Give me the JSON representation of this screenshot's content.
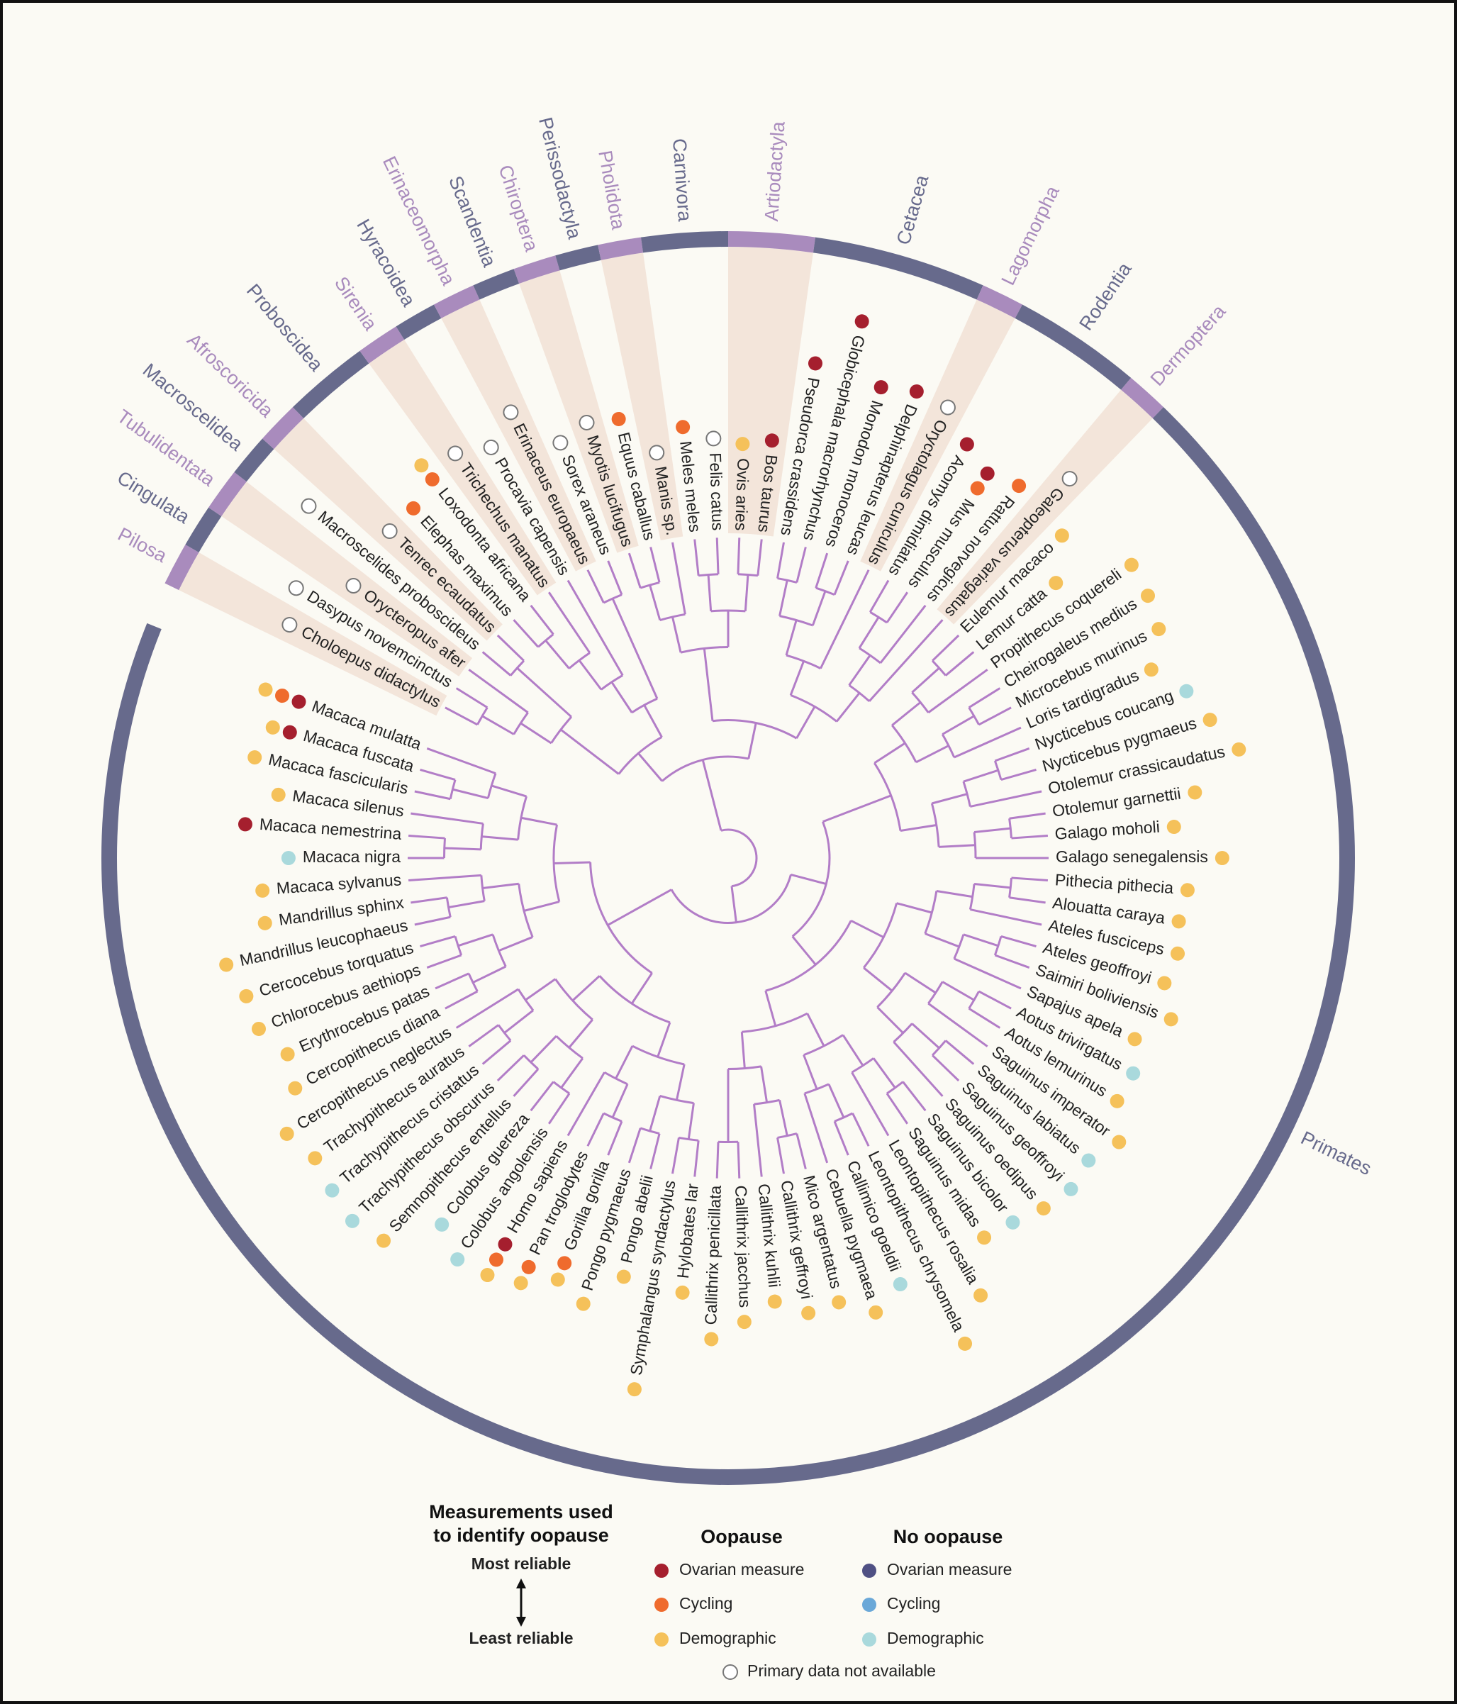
{
  "orders": [
    {
      "name": "Pilosa",
      "color": "#a98bbd",
      "shaded": true,
      "species": [
        {
          "name": "Choloepus didactylus",
          "dots": [
            "#ffffff"
          ]
        }
      ]
    },
    {
      "name": "Cingulata",
      "color": "#676a8c",
      "shaded": false,
      "species": [
        {
          "name": "Dasypus novemcinctus",
          "dots": [
            "#ffffff"
          ]
        }
      ]
    },
    {
      "name": "Tubulidentata",
      "color": "#a98bbd",
      "shaded": true,
      "species": [
        {
          "name": "Orycteropus afer",
          "dots": [
            "#ffffff"
          ]
        }
      ]
    },
    {
      "name": "Macroscelidea",
      "color": "#676a8c",
      "shaded": false,
      "species": [
        {
          "name": "Macroscelides proboscideus",
          "dots": [
            "#ffffff"
          ]
        }
      ]
    },
    {
      "name": "Afroscoricida",
      "color": "#a98bbd",
      "shaded": true,
      "species": [
        {
          "name": "Tenrec ecaudatus",
          "dots": [
            "#ffffff"
          ]
        }
      ]
    },
    {
      "name": "Proboscidea",
      "color": "#676a8c",
      "shaded": false,
      "species": [
        {
          "name": "Elephas maximus",
          "dots": [
            "#ef6b2d"
          ]
        },
        {
          "name": "Loxodonta africana",
          "dots": [
            "#ef6b2d",
            "#f5c15a"
          ]
        }
      ]
    },
    {
      "name": "Sirenia",
      "color": "#a98bbd",
      "shaded": true,
      "species": [
        {
          "name": "Trichechus manatus",
          "dots": [
            "#ffffff"
          ]
        }
      ]
    },
    {
      "name": "Hyracoidea",
      "color": "#676a8c",
      "shaded": false,
      "species": [
        {
          "name": "Procavia capensis",
          "dots": [
            "#ffffff"
          ]
        }
      ]
    },
    {
      "name": "Erinaceomorpha",
      "color": "#a98bbd",
      "shaded": true,
      "species": [
        {
          "name": "Erinaceus europaeus",
          "dots": [
            "#ffffff"
          ]
        }
      ]
    },
    {
      "name": "Scandentia",
      "color": "#676a8c",
      "shaded": false,
      "species": [
        {
          "name": "Sorex araneus",
          "dots": [
            "#ffffff"
          ]
        }
      ]
    },
    {
      "name": "Chiroptera",
      "color": "#a98bbd",
      "shaded": true,
      "species": [
        {
          "name": "Myotis lucifugus",
          "dots": [
            "#ffffff"
          ]
        }
      ]
    },
    {
      "name": "Perissodactyla",
      "color": "#676a8c",
      "shaded": false,
      "species": [
        {
          "name": "Equus caballus",
          "dots": [
            "#ef6b2d"
          ]
        }
      ]
    },
    {
      "name": "Pholidota",
      "color": "#a98bbd",
      "shaded": true,
      "species": [
        {
          "name": "Manis sp.",
          "dots": [
            "#ffffff"
          ]
        }
      ]
    },
    {
      "name": "Carnivora",
      "color": "#676a8c",
      "shaded": false,
      "species": [
        {
          "name": "Meles meles",
          "dots": [
            "#ef6b2d"
          ]
        },
        {
          "name": "Felis catus",
          "dots": [
            "#ffffff"
          ]
        }
      ]
    },
    {
      "name": "Artiodactyla",
      "color": "#a98bbd",
      "shaded": true,
      "species": [
        {
          "name": "Ovis aries",
          "dots": [
            "#f5c15a"
          ]
        },
        {
          "name": "Bos taurus",
          "dots": [
            "#a51f2e"
          ]
        }
      ]
    },
    {
      "name": "Cetacea",
      "color": "#676a8c",
      "shaded": false,
      "species": [
        {
          "name": "Pseudorca crassidens",
          "dots": [
            "#a51f2e"
          ]
        },
        {
          "name": "Globicephala macrorhynchus",
          "dots": [
            "#a51f2e"
          ]
        },
        {
          "name": "Monodon monoceros",
          "dots": [
            "#a51f2e"
          ]
        },
        {
          "name": "Delphinapterus leucas",
          "dots": [
            "#a51f2e"
          ]
        }
      ]
    },
    {
      "name": "Lagomorpha",
      "color": "#a98bbd",
      "shaded": true,
      "species": [
        {
          "name": "Oryctolagus cuniculus",
          "dots": [
            "#ffffff"
          ]
        }
      ]
    },
    {
      "name": "Rodentia",
      "color": "#676a8c",
      "shaded": false,
      "species": [
        {
          "name": "Acomys dimidiatus",
          "dots": [
            "#a51f2e"
          ]
        },
        {
          "name": "Mus musculus",
          "dots": [
            "#ef6b2d",
            "#a51f2e"
          ]
        },
        {
          "name": "Rattus norvegicus",
          "dots": [
            "#ef6b2d"
          ]
        }
      ]
    },
    {
      "name": "Dermoptera",
      "color": "#a98bbd",
      "shaded": true,
      "species": [
        {
          "name": "Galeopterus variegatus",
          "dots": [
            "#ffffff"
          ]
        }
      ]
    },
    {
      "name": "Primates",
      "color": "#676a8c",
      "shaded": false,
      "species": [
        {
          "name": "Eulemur macaco",
          "dots": [
            "#f5c15a"
          ]
        },
        {
          "name": "Lemur catta",
          "dots": [
            "#f5c15a"
          ]
        },
        {
          "name": "Propithecus coquereli",
          "dots": [
            "#f5c15a"
          ]
        },
        {
          "name": "Cheirogaleus medius",
          "dots": [
            "#f5c15a"
          ]
        },
        {
          "name": "Microcebus murinus",
          "dots": [
            "#f5c15a"
          ]
        },
        {
          "name": "Loris tardigradus",
          "dots": [
            "#f5c15a"
          ]
        },
        {
          "name": "Nycticebus coucang",
          "dots": [
            "#a9d9dc"
          ]
        },
        {
          "name": "Nycticebus pygmaeus",
          "dots": [
            "#f5c15a"
          ]
        },
        {
          "name": "Otolemur crassicaudatus",
          "dots": [
            "#f5c15a"
          ]
        },
        {
          "name": "Otolemur garnettii",
          "dots": [
            "#f5c15a"
          ]
        },
        {
          "name": "Galago moholi",
          "dots": [
            "#f5c15a"
          ]
        },
        {
          "name": "Galago senegalensis",
          "dots": [
            "#f5c15a"
          ]
        },
        {
          "name": "Pithecia pithecia",
          "dots": [
            "#f5c15a"
          ]
        },
        {
          "name": "Alouatta caraya",
          "dots": [
            "#f5c15a"
          ]
        },
        {
          "name": "Ateles fusciceps",
          "dots": [
            "#f5c15a"
          ]
        },
        {
          "name": "Ateles geoffroyi",
          "dots": [
            "#f5c15a"
          ]
        },
        {
          "name": "Saimiri boliviensis",
          "dots": [
            "#f5c15a"
          ]
        },
        {
          "name": "Sapajus apela",
          "dots": [
            "#f5c15a"
          ]
        },
        {
          "name": "Aotus trivirgatus",
          "dots": [
            "#a9d9dc"
          ]
        },
        {
          "name": "Aotus lemurinus",
          "dots": [
            "#f5c15a"
          ]
        },
        {
          "name": "Saguinus imperator",
          "dots": [
            "#f5c15a"
          ]
        },
        {
          "name": "Saguinus labiatus",
          "dots": [
            "#a9d9dc"
          ]
        },
        {
          "name": "Saguinus geoffroyi",
          "dots": [
            "#a9d9dc"
          ]
        },
        {
          "name": "Saguinus oedipus",
          "dots": [
            "#f5c15a"
          ]
        },
        {
          "name": "Saguinus bicolor",
          "dots": [
            "#a9d9dc"
          ]
        },
        {
          "name": "Saguinus midas",
          "dots": [
            "#f5c15a"
          ]
        },
        {
          "name": "Leontopithecus rosalia",
          "dots": [
            "#f5c15a"
          ]
        },
        {
          "name": "Leontopithecus chrysomela",
          "dots": [
            "#f5c15a"
          ]
        },
        {
          "name": "Callimico goeldii",
          "dots": [
            "#a9d9dc"
          ]
        },
        {
          "name": "Cebuella pygmaea",
          "dots": [
            "#f5c15a"
          ]
        },
        {
          "name": "Mico argentatus",
          "dots": [
            "#f5c15a"
          ]
        },
        {
          "name": "Callithrix geffroyi",
          "dots": [
            "#f5c15a"
          ]
        },
        {
          "name": "Callithrix kuhlii",
          "dots": [
            "#f5c15a"
          ]
        },
        {
          "name": "Callithrix jacchus",
          "dots": [
            "#f5c15a"
          ]
        },
        {
          "name": "Callithrix penicillata",
          "dots": [
            "#f5c15a"
          ]
        },
        {
          "name": "Hylobates lar",
          "dots": [
            "#f5c15a"
          ]
        },
        {
          "name": "Symphalangus syndactylus",
          "dots": [
            "#f5c15a"
          ]
        },
        {
          "name": "Pongo abelii",
          "dots": [
            "#f5c15a"
          ]
        },
        {
          "name": "Pongo pygmaeus",
          "dots": [
            "#f5c15a"
          ]
        },
        {
          "name": "Gorilla gorilla",
          "dots": [
            "#ef6b2d",
            "#f5c15a"
          ]
        },
        {
          "name": "Pan troglodytes",
          "dots": [
            "#ef6b2d",
            "#f5c15a"
          ]
        },
        {
          "name": "Homo sapiens",
          "dots": [
            "#a51f2e",
            "#ef6b2d",
            "#f5c15a"
          ]
        },
        {
          "name": "Colobus angolensis",
          "dots": [
            "#a9d9dc"
          ]
        },
        {
          "name": "Colobus guereza",
          "dots": [
            "#a9d9dc"
          ]
        },
        {
          "name": "Semnopithecus entellus",
          "dots": [
            "#f5c15a"
          ]
        },
        {
          "name": "Trachypithecus obscurus",
          "dots": [
            "#a9d9dc"
          ]
        },
        {
          "name": "Trachypithecus cristatus",
          "dots": [
            "#a9d9dc"
          ]
        },
        {
          "name": "Trachypithecus auratus",
          "dots": [
            "#f5c15a"
          ]
        },
        {
          "name": "Cercopithecus neglectus",
          "dots": [
            "#f5c15a"
          ]
        },
        {
          "name": "Cercopithecus diana",
          "dots": [
            "#f5c15a"
          ]
        },
        {
          "name": "Erythrocebus patas",
          "dots": [
            "#f5c15a"
          ]
        },
        {
          "name": "Chlorocebus aethiops",
          "dots": [
            "#f5c15a"
          ]
        },
        {
          "name": "Cercocebus torquatus",
          "dots": [
            "#f5c15a"
          ]
        },
        {
          "name": "Mandrillus leucophaeus",
          "dots": [
            "#f5c15a"
          ]
        },
        {
          "name": "Mandrillus sphinx",
          "dots": [
            "#f5c15a"
          ]
        },
        {
          "name": "Macaca sylvanus",
          "dots": [
            "#f5c15a"
          ]
        },
        {
          "name": "Macaca nigra",
          "dots": [
            "#a9d9dc"
          ]
        },
        {
          "name": "Macaca nemestrina",
          "dots": [
            "#a51f2e"
          ]
        },
        {
          "name": "Macaca silenus",
          "dots": [
            "#f5c15a"
          ]
        },
        {
          "name": "Macaca fascicularis",
          "dots": [
            "#f5c15a"
          ]
        },
        {
          "name": "Macaca fuscata",
          "dots": [
            "#a51f2e",
            "#f5c15a"
          ]
        },
        {
          "name": "Macaca mulatta",
          "dots": [
            "#a51f2e",
            "#ef6b2d",
            "#f5c15a"
          ]
        }
      ]
    }
  ],
  "legend": {
    "reliability": {
      "title": [
        "Measurements used",
        "to identify oopause"
      ],
      "most": "Most reliable",
      "least": "Least reliable"
    },
    "oopause": {
      "title": "Oopause",
      "items": [
        {
          "label": "Ovarian measure",
          "color": "#a51f2e"
        },
        {
          "label": "Cycling",
          "color": "#ef6b2d"
        },
        {
          "label": "Demographic",
          "color": "#f5c15a"
        }
      ]
    },
    "no_oopause": {
      "title": "No oopause",
      "items": [
        {
          "label": "Ovarian measure",
          "color": "#4f5083"
        },
        {
          "label": "Cycling",
          "color": "#6aa8d8"
        },
        {
          "label": "Demographic",
          "color": "#a9d9dc"
        }
      ]
    },
    "unavailable": {
      "label": "Primary data not available",
      "color": "#ffffff"
    }
  }
}
